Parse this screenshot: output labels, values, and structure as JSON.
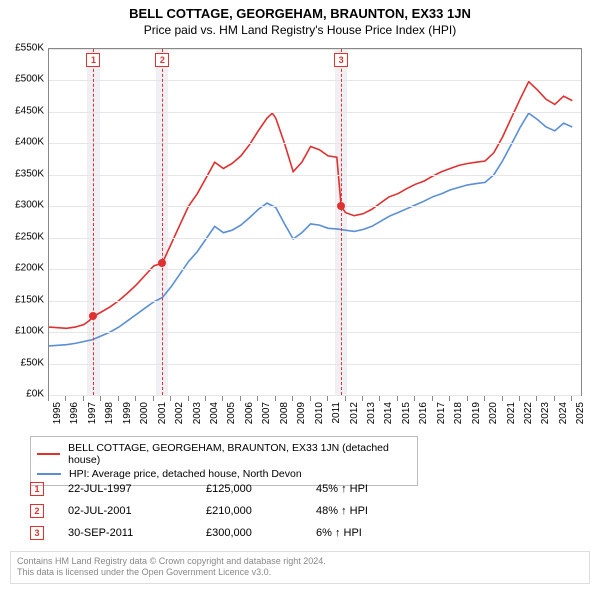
{
  "title_line1": "BELL COTTAGE, GEORGEHAM, BRAUNTON, EX33 1JN",
  "title_line2": "Price paid vs. HM Land Registry's House Price Index (HPI)",
  "chart": {
    "type": "line",
    "x_year_min": 1995,
    "x_year_max": 2025.5,
    "x_ticks": [
      1995,
      1996,
      1997,
      1998,
      1999,
      2000,
      2001,
      2002,
      2003,
      2004,
      2005,
      2006,
      2007,
      2008,
      2009,
      2010,
      2011,
      2012,
      2013,
      2014,
      2015,
      2016,
      2017,
      2018,
      2019,
      2020,
      2021,
      2022,
      2023,
      2024,
      2025
    ],
    "ylim": [
      0,
      550000
    ],
    "ytick_step": 50000,
    "y_prefix": "£",
    "y_suffix": "K",
    "background_color": "#ffffff",
    "grid_color": "#e6e6e6",
    "band_color": "#f0f0f4",
    "axis_color": "#888888",
    "line_width": 1.6,
    "series": [
      {
        "name": "BELL COTTAGE, GEORGEHAM, BRAUNTON, EX33 1JN (detached house)",
        "color": "#e03030",
        "data": [
          [
            1995.0,
            108000
          ],
          [
            1995.5,
            107000
          ],
          [
            1996.0,
            106000
          ],
          [
            1996.5,
            108000
          ],
          [
            1997.0,
            112000
          ],
          [
            1997.3,
            118000
          ],
          [
            1997.55,
            125000
          ],
          [
            1998.0,
            132000
          ],
          [
            1998.5,
            140000
          ],
          [
            1999.0,
            150000
          ],
          [
            1999.5,
            162000
          ],
          [
            2000.0,
            175000
          ],
          [
            2000.5,
            190000
          ],
          [
            2001.0,
            205000
          ],
          [
            2001.5,
            210000
          ],
          [
            2002.0,
            240000
          ],
          [
            2002.5,
            270000
          ],
          [
            2003.0,
            300000
          ],
          [
            2003.5,
            320000
          ],
          [
            2004.0,
            345000
          ],
          [
            2004.5,
            370000
          ],
          [
            2005.0,
            360000
          ],
          [
            2005.5,
            368000
          ],
          [
            2006.0,
            380000
          ],
          [
            2006.5,
            398000
          ],
          [
            2007.0,
            420000
          ],
          [
            2007.5,
            440000
          ],
          [
            2007.8,
            448000
          ],
          [
            2008.0,
            440000
          ],
          [
            2008.5,
            400000
          ],
          [
            2009.0,
            355000
          ],
          [
            2009.5,
            370000
          ],
          [
            2010.0,
            395000
          ],
          [
            2010.5,
            390000
          ],
          [
            2011.0,
            380000
          ],
          [
            2011.5,
            378000
          ],
          [
            2011.75,
            300000
          ],
          [
            2012.0,
            290000
          ],
          [
            2012.5,
            285000
          ],
          [
            2013.0,
            288000
          ],
          [
            2013.5,
            295000
          ],
          [
            2014.0,
            305000
          ],
          [
            2014.5,
            315000
          ],
          [
            2015.0,
            320000
          ],
          [
            2015.5,
            328000
          ],
          [
            2016.0,
            335000
          ],
          [
            2016.5,
            340000
          ],
          [
            2017.0,
            348000
          ],
          [
            2017.5,
            355000
          ],
          [
            2018.0,
            360000
          ],
          [
            2018.5,
            365000
          ],
          [
            2019.0,
            368000
          ],
          [
            2019.5,
            370000
          ],
          [
            2020.0,
            372000
          ],
          [
            2020.5,
            385000
          ],
          [
            2021.0,
            410000
          ],
          [
            2021.5,
            440000
          ],
          [
            2022.0,
            470000
          ],
          [
            2022.5,
            498000
          ],
          [
            2023.0,
            485000
          ],
          [
            2023.5,
            470000
          ],
          [
            2024.0,
            462000
          ],
          [
            2024.5,
            475000
          ],
          [
            2025.0,
            468000
          ]
        ]
      },
      {
        "name": "HPI: Average price, detached house, North Devon",
        "color": "#5a8fd6",
        "data": [
          [
            1995.0,
            78000
          ],
          [
            1995.5,
            79000
          ],
          [
            1996.0,
            80000
          ],
          [
            1996.5,
            82000
          ],
          [
            1997.0,
            85000
          ],
          [
            1997.5,
            88000
          ],
          [
            1998.0,
            94000
          ],
          [
            1998.5,
            100000
          ],
          [
            1999.0,
            108000
          ],
          [
            1999.5,
            118000
          ],
          [
            2000.0,
            128000
          ],
          [
            2000.5,
            138000
          ],
          [
            2001.0,
            148000
          ],
          [
            2001.5,
            155000
          ],
          [
            2002.0,
            172000
          ],
          [
            2002.5,
            192000
          ],
          [
            2003.0,
            212000
          ],
          [
            2003.5,
            228000
          ],
          [
            2004.0,
            248000
          ],
          [
            2004.5,
            268000
          ],
          [
            2005.0,
            258000
          ],
          [
            2005.5,
            262000
          ],
          [
            2006.0,
            270000
          ],
          [
            2006.5,
            282000
          ],
          [
            2007.0,
            295000
          ],
          [
            2007.5,
            305000
          ],
          [
            2008.0,
            298000
          ],
          [
            2008.5,
            272000
          ],
          [
            2009.0,
            248000
          ],
          [
            2009.5,
            258000
          ],
          [
            2010.0,
            272000
          ],
          [
            2010.5,
            270000
          ],
          [
            2011.0,
            265000
          ],
          [
            2011.5,
            264000
          ],
          [
            2012.0,
            262000
          ],
          [
            2012.5,
            260000
          ],
          [
            2013.0,
            263000
          ],
          [
            2013.5,
            268000
          ],
          [
            2014.0,
            276000
          ],
          [
            2014.5,
            284000
          ],
          [
            2015.0,
            290000
          ],
          [
            2015.5,
            296000
          ],
          [
            2016.0,
            302000
          ],
          [
            2016.5,
            308000
          ],
          [
            2017.0,
            315000
          ],
          [
            2017.5,
            320000
          ],
          [
            2018.0,
            326000
          ],
          [
            2018.5,
            330000
          ],
          [
            2019.0,
            334000
          ],
          [
            2019.5,
            336000
          ],
          [
            2020.0,
            338000
          ],
          [
            2020.5,
            350000
          ],
          [
            2021.0,
            372000
          ],
          [
            2021.5,
            398000
          ],
          [
            2022.0,
            425000
          ],
          [
            2022.5,
            448000
          ],
          [
            2023.0,
            438000
          ],
          [
            2023.5,
            426000
          ],
          [
            2024.0,
            420000
          ],
          [
            2024.5,
            432000
          ],
          [
            2025.0,
            426000
          ]
        ]
      }
    ],
    "events": [
      {
        "n": "1",
        "year": 1997.55,
        "price": 125000,
        "date": "22-JUL-1997",
        "price_label": "£125,000",
        "pct": "45% ↑ HPI"
      },
      {
        "n": "2",
        "year": 2001.5,
        "price": 210000,
        "date": "02-JUL-2001",
        "price_label": "£210,000",
        "pct": "48% ↑ HPI"
      },
      {
        "n": "3",
        "year": 2011.75,
        "price": 300000,
        "date": "30-SEP-2011",
        "price_label": "£300,000",
        "pct": "6% ↑ HPI"
      }
    ],
    "event_band_halfwidth_years": 0.35
  },
  "legend_title_1": "BELL COTTAGE, GEORGEHAM, BRAUNTON, EX33 1JN (detached house)",
  "legend_title_2": "HPI: Average price, detached house, North Devon",
  "footer_line1": "Contains HM Land Registry data © Crown copyright and database right 2024.",
  "footer_line2": "This data is licensed under the Open Government Licence v3.0."
}
